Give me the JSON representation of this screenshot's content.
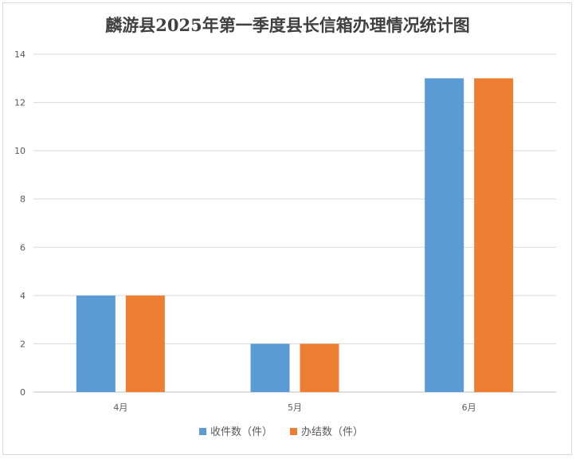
{
  "chart_data": {
    "type": "bar",
    "title": "麟游县2025年第一季度县长信箱办理情况统计图",
    "categories": [
      "4月",
      "5月",
      "6月"
    ],
    "series": [
      {
        "name": "收件数（件）",
        "values": [
          4,
          2,
          13
        ],
        "color": "#5b9bd5"
      },
      {
        "name": "办结数（件）",
        "values": [
          4,
          2,
          13
        ],
        "color": "#ed7d31"
      }
    ],
    "xlabel": "",
    "ylabel": "",
    "ylim": [
      0,
      14
    ],
    "yticks": [
      0,
      2,
      4,
      6,
      8,
      10,
      12,
      14
    ],
    "grid": true,
    "legend_position": "bottom"
  }
}
